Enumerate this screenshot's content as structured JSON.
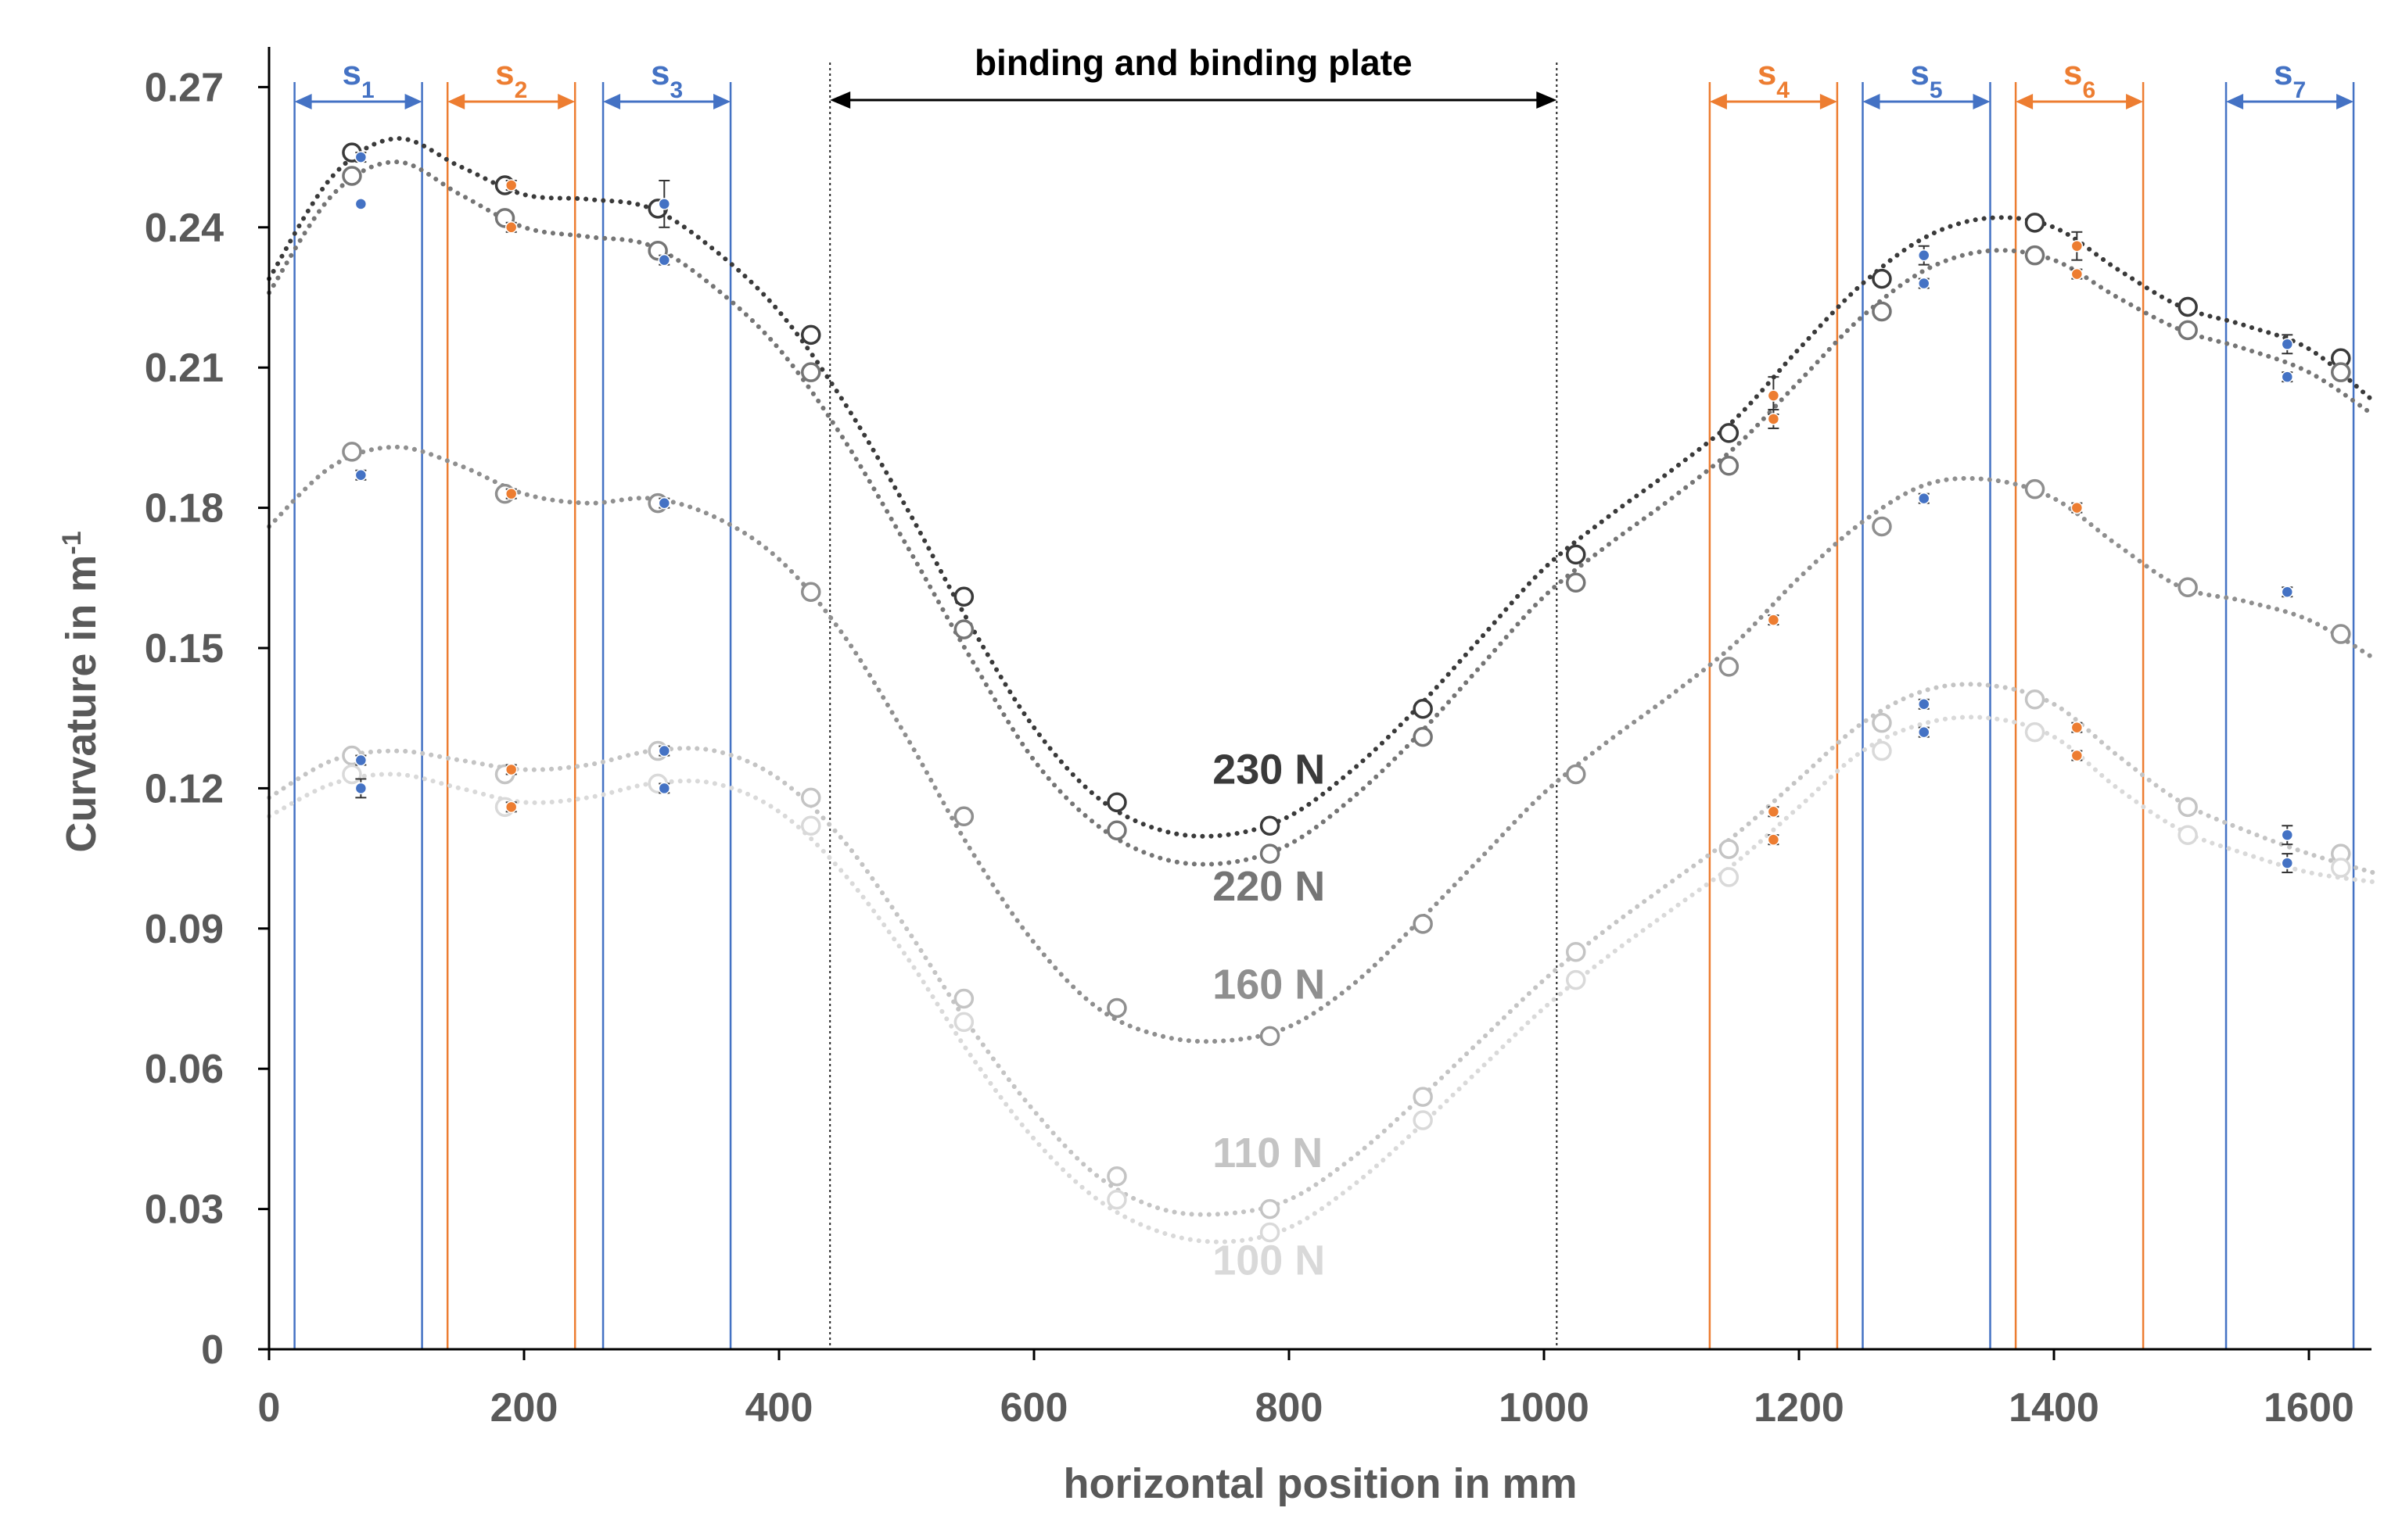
{
  "chart_data": {
    "type": "scatter",
    "title": "",
    "xlabel": "horizontal position in mm",
    "ylabel": "Curvature  in m",
    "ylabel_superscript": "-1",
    "xlim": [
      0,
      1650
    ],
    "ylim": [
      0,
      0.27
    ],
    "xticks": [
      0,
      200,
      400,
      600,
      800,
      1000,
      1200,
      1400,
      1600
    ],
    "yticks": [
      0,
      0.03,
      0.06,
      0.09,
      0.12,
      0.15,
      0.18,
      0.21,
      0.24,
      0.27
    ],
    "ytick_labels": [
      "0",
      "0.03",
      "0.06",
      "0.09",
      "0.12",
      "0.15",
      "0.18",
      "0.21",
      "0.24",
      "0.27"
    ],
    "grid": false,
    "colors": {
      "blue": "#4472c4",
      "orange": "#ed7d31",
      "black": "#000000",
      "axis": "#595959"
    },
    "region": {
      "label": "binding and binding plate",
      "x_start": 440,
      "x_end": 1010
    },
    "segments": [
      {
        "name": "s",
        "sub": "1",
        "x_start": 20,
        "x_end": 120,
        "color": "#4472c4"
      },
      {
        "name": "s",
        "sub": "2",
        "x_start": 140,
        "x_end": 240,
        "color": "#ed7d31"
      },
      {
        "name": "s",
        "sub": "3",
        "x_start": 262,
        "x_end": 362,
        "color": "#4472c4"
      },
      {
        "name": "s",
        "sub": "4",
        "x_start": 1130,
        "x_end": 1230,
        "color": "#ed7d31"
      },
      {
        "name": "s",
        "sub": "5",
        "x_start": 1250,
        "x_end": 1350,
        "color": "#4472c4"
      },
      {
        "name": "s",
        "sub": "6",
        "x_start": 1370,
        "x_end": 1470,
        "color": "#ed7d31"
      },
      {
        "name": "s",
        "sub": "7",
        "x_start": 1535,
        "x_end": 1635,
        "color": "#4472c4"
      }
    ],
    "series": [
      {
        "name": "230 N",
        "color": "#3a3a3a",
        "label_x": 740,
        "label_y": 0.121,
        "x": [
          65,
          185,
          305,
          425,
          545,
          665,
          785,
          905,
          1025,
          1145,
          1265,
          1385,
          1505,
          1625
        ],
        "values": [
          0.256,
          0.249,
          0.244,
          0.217,
          0.161,
          0.117,
          0.112,
          0.137,
          0.17,
          0.196,
          0.229,
          0.241,
          0.223,
          0.212
        ],
        "trend_x": [
          0,
          50,
          100,
          150,
          200,
          250,
          300,
          350,
          400,
          450,
          500,
          550,
          600,
          650,
          700,
          750,
          800,
          850,
          900,
          950,
          1000,
          1050,
          1100,
          1150,
          1200,
          1250,
          1300,
          1350,
          1400,
          1450,
          1500,
          1550,
          1600,
          1650
        ],
        "trend_y": [
          0.229,
          0.251,
          0.259,
          0.253,
          0.247,
          0.246,
          0.244,
          0.235,
          0.222,
          0.203,
          0.18,
          0.155,
          0.133,
          0.118,
          0.111,
          0.11,
          0.114,
          0.124,
          0.137,
          0.152,
          0.167,
          0.178,
          0.188,
          0.199,
          0.214,
          0.228,
          0.238,
          0.242,
          0.24,
          0.231,
          0.223,
          0.219,
          0.214,
          0.203
        ]
      },
      {
        "name": "220 N",
        "color": "#757575",
        "label_x": 740,
        "label_y": 0.096,
        "x": [
          65,
          185,
          305,
          425,
          545,
          665,
          785,
          905,
          1025,
          1145,
          1265,
          1385,
          1505,
          1625
        ],
        "values": [
          0.251,
          0.242,
          0.235,
          0.209,
          0.154,
          0.111,
          0.106,
          0.131,
          0.164,
          0.189,
          0.222,
          0.234,
          0.218,
          0.209
        ],
        "trend_x": [
          0,
          50,
          100,
          150,
          200,
          250,
          300,
          350,
          400,
          450,
          500,
          550,
          600,
          650,
          700,
          750,
          800,
          850,
          900,
          950,
          1000,
          1050,
          1100,
          1150,
          1200,
          1250,
          1300,
          1350,
          1400,
          1450,
          1500,
          1550,
          1600,
          1650
        ],
        "trend_y": [
          0.226,
          0.247,
          0.254,
          0.247,
          0.24,
          0.238,
          0.236,
          0.227,
          0.214,
          0.195,
          0.172,
          0.148,
          0.126,
          0.112,
          0.105,
          0.104,
          0.108,
          0.118,
          0.131,
          0.146,
          0.161,
          0.172,
          0.182,
          0.193,
          0.207,
          0.221,
          0.231,
          0.235,
          0.233,
          0.225,
          0.218,
          0.214,
          0.209,
          0.2
        ]
      },
      {
        "name": "160 N",
        "color": "#8f8f8f",
        "label_x": 740,
        "label_y": 0.075,
        "x": [
          65,
          185,
          305,
          425,
          545,
          665,
          785,
          905,
          1025,
          1145,
          1265,
          1385,
          1505,
          1625
        ],
        "values": [
          0.192,
          0.183,
          0.181,
          0.162,
          0.114,
          0.073,
          0.067,
          0.091,
          0.123,
          0.146,
          0.176,
          0.184,
          0.163,
          0.153
        ],
        "trend_x": [
          0,
          50,
          100,
          150,
          200,
          250,
          300,
          350,
          400,
          450,
          500,
          550,
          600,
          650,
          700,
          750,
          800,
          850,
          900,
          950,
          1000,
          1050,
          1100,
          1150,
          1200,
          1250,
          1300,
          1350,
          1400,
          1450,
          1500,
          1550,
          1600,
          1650
        ],
        "trend_y": [
          0.176,
          0.189,
          0.193,
          0.189,
          0.183,
          0.181,
          0.182,
          0.178,
          0.169,
          0.153,
          0.131,
          0.107,
          0.087,
          0.073,
          0.067,
          0.066,
          0.069,
          0.078,
          0.091,
          0.105,
          0.119,
          0.13,
          0.14,
          0.151,
          0.165,
          0.177,
          0.185,
          0.186,
          0.182,
          0.172,
          0.163,
          0.16,
          0.156,
          0.148
        ]
      },
      {
        "name": "110 N",
        "color": "#c4c4c4",
        "label_x": 740,
        "label_y": 0.039,
        "x": [
          65,
          185,
          305,
          425,
          545,
          665,
          785,
          905,
          1025,
          1145,
          1265,
          1385,
          1505,
          1625
        ],
        "values": [
          0.127,
          0.123,
          0.128,
          0.118,
          0.075,
          0.037,
          0.03,
          0.054,
          0.085,
          0.107,
          0.134,
          0.139,
          0.116,
          0.106
        ],
        "trend_x": [
          0,
          50,
          100,
          150,
          200,
          250,
          300,
          350,
          400,
          450,
          500,
          550,
          600,
          650,
          700,
          750,
          800,
          850,
          900,
          950,
          1000,
          1050,
          1100,
          1150,
          1200,
          1250,
          1300,
          1350,
          1400,
          1450,
          1500,
          1550,
          1600,
          1650
        ],
        "trend_y": [
          0.118,
          0.126,
          0.128,
          0.126,
          0.124,
          0.125,
          0.128,
          0.128,
          0.122,
          0.109,
          0.09,
          0.069,
          0.051,
          0.037,
          0.03,
          0.029,
          0.032,
          0.041,
          0.053,
          0.066,
          0.079,
          0.09,
          0.1,
          0.11,
          0.122,
          0.134,
          0.141,
          0.142,
          0.138,
          0.127,
          0.117,
          0.111,
          0.106,
          0.102
        ]
      },
      {
        "name": "100 N",
        "color": "#d9d9d9",
        "label_x": 740,
        "label_y": 0.016,
        "x": [
          65,
          185,
          305,
          425,
          545,
          665,
          785,
          905,
          1025,
          1145,
          1265,
          1385,
          1505,
          1625
        ],
        "values": [
          0.123,
          0.116,
          0.121,
          0.112,
          0.07,
          0.032,
          0.025,
          0.049,
          0.079,
          0.101,
          0.128,
          0.132,
          0.11,
          0.103
        ],
        "trend_x": [
          0,
          50,
          100,
          150,
          200,
          250,
          300,
          350,
          400,
          450,
          500,
          550,
          600,
          650,
          700,
          750,
          800,
          850,
          900,
          950,
          1000,
          1050,
          1100,
          1150,
          1200,
          1250,
          1300,
          1350,
          1400,
          1450,
          1500,
          1550,
          1600,
          1650
        ],
        "trend_y": [
          0.114,
          0.121,
          0.123,
          0.12,
          0.117,
          0.118,
          0.121,
          0.121,
          0.115,
          0.102,
          0.084,
          0.063,
          0.045,
          0.032,
          0.025,
          0.023,
          0.026,
          0.035,
          0.047,
          0.06,
          0.073,
          0.084,
          0.094,
          0.104,
          0.116,
          0.128,
          0.134,
          0.135,
          0.131,
          0.12,
          0.111,
          0.106,
          0.102,
          0.1
        ]
      }
    ],
    "measured": [
      {
        "x": 72,
        "y": 0.255,
        "color": "#4472c4",
        "err": 0.001
      },
      {
        "x": 72,
        "y": 0.245,
        "color": "#4472c4",
        "err": 0.0
      },
      {
        "x": 190,
        "y": 0.249,
        "color": "#ed7d31",
        "err": 0.001
      },
      {
        "x": 190,
        "y": 0.24,
        "color": "#ed7d31",
        "err": 0.001
      },
      {
        "x": 310,
        "y": 0.245,
        "color": "#4472c4",
        "err": 0.005
      },
      {
        "x": 310,
        "y": 0.233,
        "color": "#4472c4",
        "err": 0.001
      },
      {
        "x": 72,
        "y": 0.187,
        "color": "#4472c4",
        "err": 0.001
      },
      {
        "x": 190,
        "y": 0.183,
        "color": "#ed7d31",
        "err": 0.001
      },
      {
        "x": 310,
        "y": 0.181,
        "color": "#4472c4",
        "err": 0.001
      },
      {
        "x": 72,
        "y": 0.126,
        "color": "#4472c4",
        "err": 0.001
      },
      {
        "x": 72,
        "y": 0.12,
        "color": "#4472c4",
        "err": 0.002
      },
      {
        "x": 190,
        "y": 0.124,
        "color": "#ed7d31",
        "err": 0.001
      },
      {
        "x": 190,
        "y": 0.116,
        "color": "#ed7d31",
        "err": 0.001
      },
      {
        "x": 310,
        "y": 0.128,
        "color": "#4472c4",
        "err": 0.001
      },
      {
        "x": 310,
        "y": 0.12,
        "color": "#4472c4",
        "err": 0.001
      },
      {
        "x": 1180,
        "y": 0.204,
        "color": "#ed7d31",
        "err": 0.004
      },
      {
        "x": 1180,
        "y": 0.199,
        "color": "#ed7d31",
        "err": 0.002
      },
      {
        "x": 1298,
        "y": 0.234,
        "color": "#4472c4",
        "err": 0.002
      },
      {
        "x": 1298,
        "y": 0.228,
        "color": "#4472c4",
        "err": 0.001
      },
      {
        "x": 1418,
        "y": 0.236,
        "color": "#ed7d31",
        "err": 0.003
      },
      {
        "x": 1418,
        "y": 0.23,
        "color": "#ed7d31",
        "err": 0.001
      },
      {
        "x": 1583,
        "y": 0.215,
        "color": "#4472c4",
        "err": 0.002
      },
      {
        "x": 1583,
        "y": 0.208,
        "color": "#4472c4",
        "err": 0.001
      },
      {
        "x": 1180,
        "y": 0.156,
        "color": "#ed7d31",
        "err": 0.001
      },
      {
        "x": 1298,
        "y": 0.182,
        "color": "#4472c4",
        "err": 0.001
      },
      {
        "x": 1418,
        "y": 0.18,
        "color": "#ed7d31",
        "err": 0.001
      },
      {
        "x": 1583,
        "y": 0.162,
        "color": "#4472c4",
        "err": 0.001
      },
      {
        "x": 1180,
        "y": 0.115,
        "color": "#ed7d31",
        "err": 0.001
      },
      {
        "x": 1180,
        "y": 0.109,
        "color": "#ed7d31",
        "err": 0.001
      },
      {
        "x": 1298,
        "y": 0.138,
        "color": "#4472c4",
        "err": 0.001
      },
      {
        "x": 1298,
        "y": 0.132,
        "color": "#4472c4",
        "err": 0.001
      },
      {
        "x": 1418,
        "y": 0.133,
        "color": "#ed7d31",
        "err": 0.001
      },
      {
        "x": 1418,
        "y": 0.127,
        "color": "#ed7d31",
        "err": 0.001
      },
      {
        "x": 1583,
        "y": 0.11,
        "color": "#4472c4",
        "err": 0.002
      },
      {
        "x": 1583,
        "y": 0.104,
        "color": "#4472c4",
        "err": 0.002
      }
    ]
  }
}
